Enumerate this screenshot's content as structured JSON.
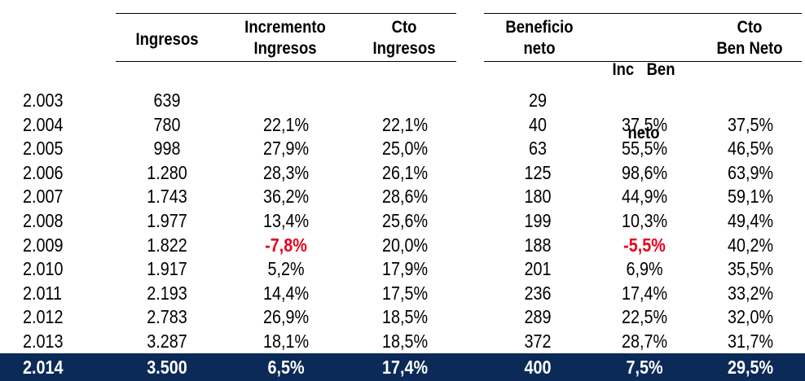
{
  "headers": {
    "ingresos": "Ingresos",
    "incremento_ingresos": [
      "Incremento",
      "Ingresos"
    ],
    "cto_ingresos": [
      "Cto",
      "Ingresos"
    ],
    "beneficio_neto": [
      "Beneficio",
      "neto"
    ],
    "inc_ben_neto": [
      "Inc   Ben",
      "neto"
    ],
    "cto_ben_neto": [
      "Cto",
      "Ben Neto"
    ]
  },
  "rows": [
    {
      "year": "2.003",
      "ingresos": "639",
      "inc_ing": "",
      "cto_ing": "",
      "ben": "29",
      "inc_ben": "",
      "cto_ben": ""
    },
    {
      "year": "2.004",
      "ingresos": "780",
      "inc_ing": "22,1%",
      "cto_ing": "22,1%",
      "ben": "40",
      "inc_ben": "37,5%",
      "cto_ben": "37,5%"
    },
    {
      "year": "2.005",
      "ingresos": "998",
      "inc_ing": "27,9%",
      "cto_ing": "25,0%",
      "ben": "63",
      "inc_ben": "55,5%",
      "cto_ben": "46,5%"
    },
    {
      "year": "2.006",
      "ingresos": "1.280",
      "inc_ing": "28,3%",
      "cto_ing": "26,1%",
      "ben": "125",
      "inc_ben": "98,6%",
      "cto_ben": "63,9%"
    },
    {
      "year": "2.007",
      "ingresos": "1.743",
      "inc_ing": "36,2%",
      "cto_ing": "28,6%",
      "ben": "180",
      "inc_ben": "44,9%",
      "cto_ben": "59,1%"
    },
    {
      "year": "2.008",
      "ingresos": "1.977",
      "inc_ing": "13,4%",
      "cto_ing": "25,6%",
      "ben": "199",
      "inc_ben": "10,3%",
      "cto_ben": "49,4%"
    },
    {
      "year": "2.009",
      "ingresos": "1.822",
      "inc_ing": "-7,8%",
      "cto_ing": "20,0%",
      "ben": "188",
      "inc_ben": "-5,5%",
      "cto_ben": "40,2%"
    },
    {
      "year": "2.010",
      "ingresos": "1.917",
      "inc_ing": "5,2%",
      "cto_ing": "17,9%",
      "ben": "201",
      "inc_ben": "6,9%",
      "cto_ben": "35,5%"
    },
    {
      "year": "2.011",
      "ingresos": "2.193",
      "inc_ing": "14,4%",
      "cto_ing": "17,5%",
      "ben": "236",
      "inc_ben": "17,4%",
      "cto_ben": "33,2%"
    },
    {
      "year": "2.012",
      "ingresos": "2.783",
      "inc_ing": "26,9%",
      "cto_ing": "18,5%",
      "ben": "289",
      "inc_ben": "22,5%",
      "cto_ben": "32,0%"
    },
    {
      "year": "2.013",
      "ingresos": "3.287",
      "inc_ing": "18,1%",
      "cto_ing": "18,5%",
      "ben": "372",
      "inc_ben": "28,7%",
      "cto_ben": "31,7%"
    },
    {
      "year": "2.014",
      "ingresos": "3.500",
      "inc_ing": "6,5%",
      "cto_ing": "17,4%",
      "ben": "400",
      "inc_ben": "7,5%",
      "cto_ben": "29,5%"
    }
  ],
  "colors": {
    "highlight_row_bg": "#0b2a57",
    "highlight_row_text": "#ffffff",
    "negative_value": "#e8001c"
  }
}
